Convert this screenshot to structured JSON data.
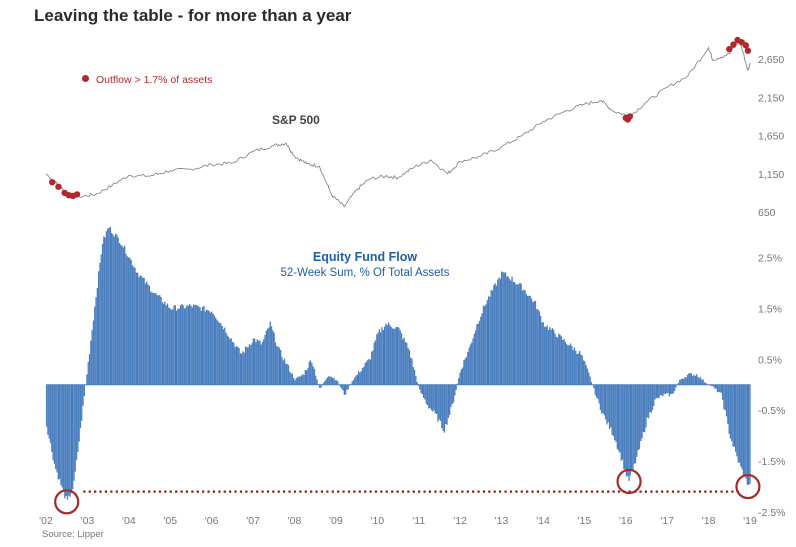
{
  "title": "Leaving the table - for more than a year",
  "source": "Source: Lipper",
  "legend": {
    "label": "Outflow > 1.7% of assets",
    "color": "#b0282c"
  },
  "sp500_label": "S&P 500",
  "flow_title": "Equity Fund Flow",
  "flow_subtitle": "52-Week Sum, % Of Total Assets",
  "colors": {
    "bars": "#4a7ebf",
    "sp_line": "#8a8a8a",
    "marker": "#b0282c",
    "circle": "#a52a2a",
    "ref_line": "#8b1a1a"
  },
  "chart_data": [
    {
      "type": "line",
      "name": "S&P 500",
      "title": "S&P 500",
      "ylim": [
        650,
        2900
      ],
      "yticks": [
        650,
        1150,
        1650,
        2150,
        2650
      ],
      "ytick_labels": [
        "650",
        "1,150",
        "1,650",
        "2,150",
        "2,650"
      ],
      "x": [
        2002.0,
        2002.3,
        2002.55,
        2002.8,
        2003.2,
        2003.6,
        2004.0,
        2004.5,
        2005.0,
        2005.5,
        2006.0,
        2006.5,
        2007.0,
        2007.5,
        2007.8,
        2008.0,
        2008.3,
        2008.6,
        2008.9,
        2009.2,
        2009.5,
        2009.8,
        2010.2,
        2010.5,
        2010.9,
        2011.3,
        2011.7,
        2012.0,
        2012.5,
        2013.0,
        2013.5,
        2014.0,
        2014.5,
        2015.0,
        2015.4,
        2015.7,
        2016.1,
        2016.5,
        2017.0,
        2017.5,
        2018.0,
        2018.1,
        2018.5,
        2018.75,
        2018.95,
        2019.0
      ],
      "values": [
        1150,
        1000,
        880,
        850,
        880,
        1000,
        1130,
        1120,
        1190,
        1210,
        1270,
        1290,
        1440,
        1520,
        1550,
        1380,
        1280,
        1250,
        870,
        720,
        940,
        1080,
        1120,
        1100,
        1240,
        1330,
        1150,
        1310,
        1380,
        1500,
        1650,
        1830,
        1960,
        2060,
        2110,
        1970,
        1900,
        2090,
        2280,
        2430,
        2800,
        2640,
        2720,
        2900,
        2500,
        2600
      ],
      "highlights": [
        {
          "x": [
            2002.15,
            2002.3,
            2002.45,
            2002.55,
            2002.65,
            2002.75
          ],
          "values": [
            1040,
            980,
            900,
            870,
            860,
            880
          ]
        },
        {
          "x": [
            2016.0,
            2016.05,
            2016.1
          ],
          "values": [
            1880,
            1860,
            1900
          ]
        },
        {
          "x": [
            2018.5,
            2018.6,
            2018.7,
            2018.8,
            2018.9,
            2018.95
          ],
          "values": [
            2780,
            2840,
            2900,
            2870,
            2830,
            2760
          ]
        }
      ]
    },
    {
      "type": "bar",
      "name": "Equity Fund Flow",
      "title": "Equity Fund Flow",
      "subtitle": "52-Week Sum, % Of Total Assets",
      "ylim": [
        -2.5,
        3.0
      ],
      "yticks": [
        2.5,
        1.5,
        0.5,
        -0.5,
        -1.5,
        -2.5
      ],
      "ytick_labels": [
        "2.5%",
        "1.5%",
        "0.5%",
        "-0.5%",
        "-1.5%",
        "-2.5%"
      ],
      "xlim": [
        2002.0,
        2019.0
      ],
      "xticks": [
        2002,
        2003,
        2004,
        2005,
        2006,
        2007,
        2008,
        2009,
        2010,
        2011,
        2012,
        2013,
        2014,
        2015,
        2016,
        2017,
        2018,
        2019
      ],
      "xtick_labels": [
        "'02",
        "'03",
        "'04",
        "'05",
        "'06",
        "'07",
        "'08",
        "'09",
        "'10",
        "'11",
        "'12",
        "'13",
        "'14",
        "'15",
        "'16",
        "'17",
        "'18",
        "'19"
      ],
      "x": [
        2002.0,
        2002.2,
        2002.4,
        2002.5,
        2002.65,
        2002.8,
        2002.9,
        2003.0,
        2003.2,
        2003.35,
        2003.5,
        2003.8,
        2004.2,
        2004.6,
        2005.0,
        2005.5,
        2006.0,
        2006.3,
        2006.7,
        2007.0,
        2007.2,
        2007.4,
        2007.6,
        2007.8,
        2008.0,
        2008.2,
        2008.4,
        2008.6,
        2008.8,
        2009.0,
        2009.2,
        2009.4,
        2009.6,
        2009.8,
        2010.0,
        2010.2,
        2010.5,
        2010.75,
        2011.0,
        2011.2,
        2011.4,
        2011.6,
        2011.8,
        2012.0,
        2012.2,
        2012.4,
        2012.6,
        2012.8,
        2013.0,
        2013.2,
        2013.5,
        2013.8,
        2014.0,
        2014.3,
        2014.6,
        2014.9,
        2015.1,
        2015.3,
        2015.5,
        2015.7,
        2015.9,
        2016.05,
        2016.15,
        2016.3,
        2016.5,
        2016.7,
        2016.9,
        2017.1,
        2017.3,
        2017.5,
        2017.7,
        2017.9,
        2018.1,
        2018.3,
        2018.5,
        2018.7,
        2018.9,
        2019.0
      ],
      "values": [
        -0.8,
        -1.6,
        -2.1,
        -2.3,
        -2.0,
        -1.0,
        -0.3,
        0.4,
        1.8,
        2.8,
        3.1,
        2.8,
        2.2,
        1.8,
        1.5,
        1.55,
        1.45,
        1.1,
        0.6,
        0.9,
        0.8,
        1.2,
        0.7,
        0.4,
        0.1,
        0.2,
        0.5,
        -0.1,
        0.2,
        0.1,
        -0.2,
        0.1,
        0.3,
        0.5,
        1.0,
        1.2,
        1.1,
        0.7,
        -0.1,
        -0.4,
        -0.6,
        -0.9,
        -0.4,
        0.3,
        0.7,
        1.2,
        1.6,
        1.9,
        2.2,
        2.1,
        1.9,
        1.6,
        1.2,
        1.0,
        0.8,
        0.6,
        0.2,
        -0.3,
        -0.7,
        -1.0,
        -1.5,
        -1.9,
        -1.7,
        -1.3,
        -0.7,
        -0.3,
        -0.2,
        -0.2,
        0.1,
        0.2,
        0.2,
        0.05,
        -0.05,
        -0.2,
        -1.0,
        -1.5,
        -1.9,
        -2.0
      ],
      "annotations": [
        {
          "x": 2002.5,
          "y": -2.3
        },
        {
          "x": 2016.08,
          "y": -1.9
        },
        {
          "x": 2018.95,
          "y": -2.0
        }
      ],
      "reference_line": {
        "y": -2.1,
        "x_from": 2002.9,
        "x_to": 2018.8
      }
    }
  ]
}
